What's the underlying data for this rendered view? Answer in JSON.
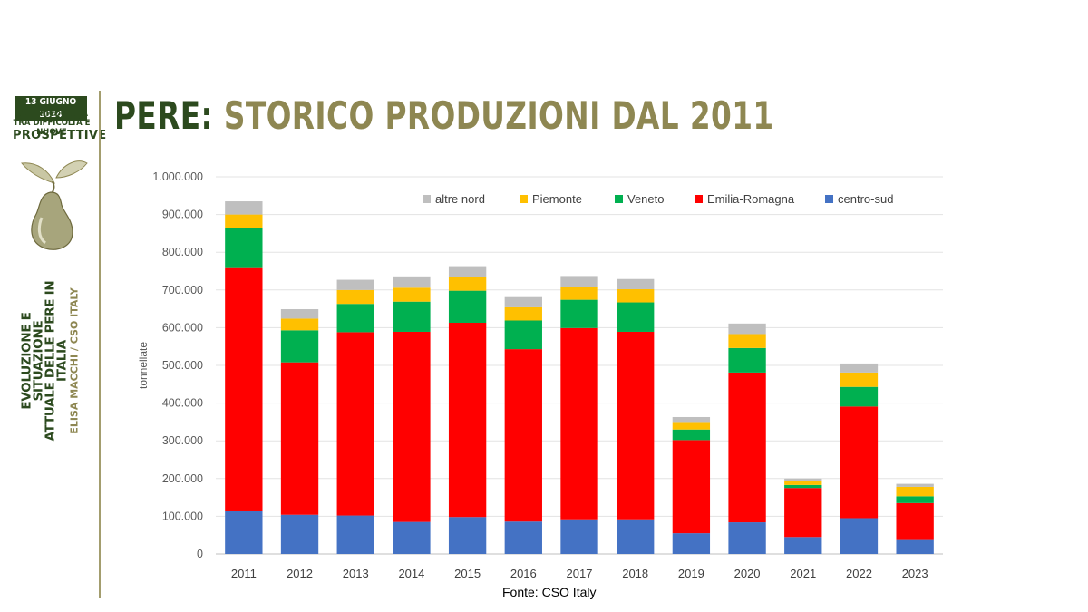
{
  "event": {
    "date": "13 GIUGNO 2024",
    "subtitle": "LA PERICOLTURA TRA DIFFICOLTÀ E NUOVE",
    "subtitle2": "PROSPETTIVE",
    "talk_title_line1": "EVOLUZIONE E SITUAZIONE",
    "talk_title_line2": "ATTUALE DELLE PERE IN ITALIA",
    "speaker": "ELISA MACCHI / CSO ITALY"
  },
  "slide": {
    "title_part1": "PERE:",
    "title_part2": "STORICO PRODUZIONI DAL 2011",
    "source": "Fonte: CSO Italy"
  },
  "colors": {
    "dark_green": "#2c4a1e",
    "olive": "#8e8752"
  },
  "chart_data": {
    "type": "bar",
    "stacked": true,
    "title": "",
    "xlabel": "",
    "ylabel": "tonnellate",
    "ylim": [
      0,
      1000000
    ],
    "yticks": [
      0,
      100000,
      200000,
      300000,
      400000,
      500000,
      600000,
      700000,
      800000,
      900000,
      1000000
    ],
    "ytick_labels": [
      "0",
      "100.000",
      "200.000",
      "300.000",
      "400.000",
      "500.000",
      "600.000",
      "700.000",
      "800.000",
      "900.000",
      "1.000.000"
    ],
    "legend_position": "top",
    "categories": [
      "2011",
      "2012",
      "2013",
      "2014",
      "2015",
      "2016",
      "2017",
      "2018",
      "2019",
      "2020",
      "2021",
      "2022",
      "2023"
    ],
    "series": [
      {
        "name": "centro-sud",
        "color": "#4472c4",
        "values": [
          113000,
          104000,
          102000,
          85000,
          98000,
          86000,
          92000,
          92000,
          55000,
          84000,
          45000,
          95000,
          37000
        ]
      },
      {
        "name": "Emilia-Romagna",
        "color": "#ff0000",
        "values": [
          645000,
          404000,
          486000,
          504000,
          515000,
          457000,
          507000,
          497000,
          247000,
          397000,
          130000,
          296000,
          98000
        ]
      },
      {
        "name": "Veneto",
        "color": "#00b050",
        "values": [
          105000,
          85000,
          75000,
          80000,
          85000,
          76000,
          75000,
          78000,
          28000,
          65000,
          8000,
          52000,
          18000
        ]
      },
      {
        "name": "Piemonte",
        "color": "#ffc000",
        "values": [
          37000,
          31000,
          37000,
          37000,
          37000,
          35000,
          33000,
          35000,
          20000,
          37000,
          10000,
          38000,
          25000
        ]
      },
      {
        "name": "altre nord",
        "color": "#bfbfbf",
        "values": [
          35000,
          25000,
          27000,
          30000,
          28000,
          27000,
          30000,
          27000,
          13000,
          28000,
          7000,
          24000,
          8000
        ]
      }
    ],
    "legend_order": [
      "altre nord",
      "Piemonte",
      "Veneto",
      "Emilia-Romagna",
      "centro-sud"
    ]
  }
}
